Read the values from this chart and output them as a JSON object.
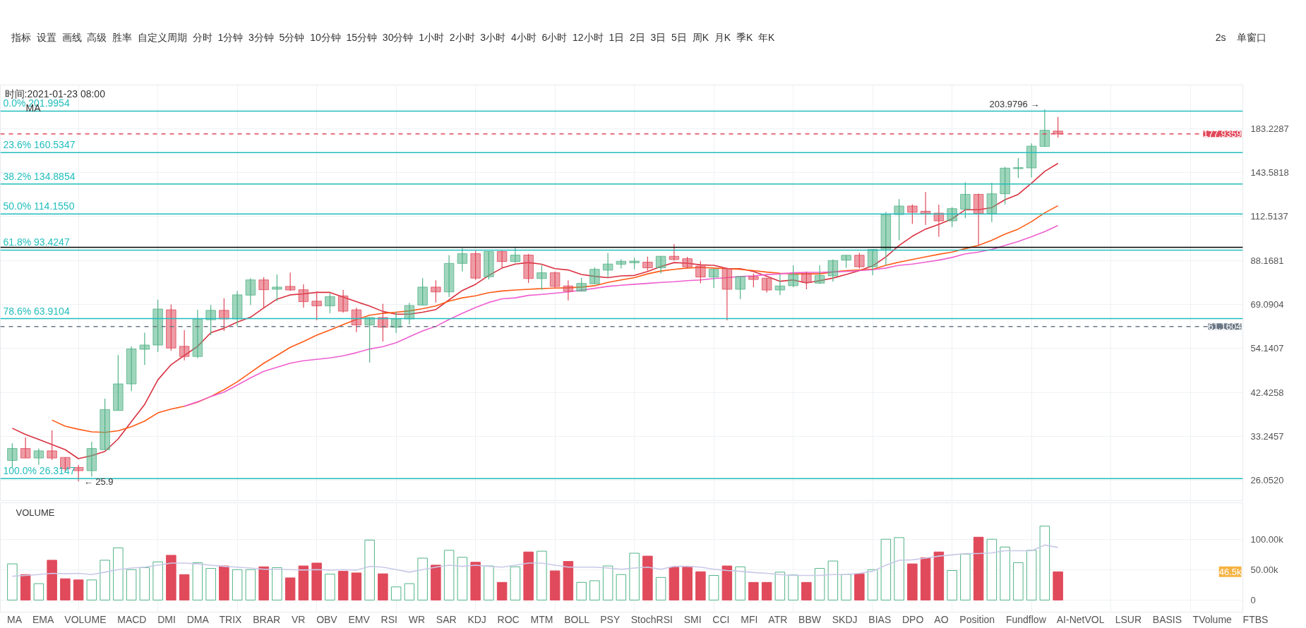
{
  "chart_data": [
    {
      "type": "candlestick",
      "categories": [
        null,
        null,
        null,
        null,
        null,
        null,
        null,
        null,
        null,
        null,
        null,
        null,
        null,
        null,
        null,
        null,
        null,
        null,
        null,
        null,
        null,
        null,
        null,
        null,
        null,
        null,
        null,
        null,
        null,
        null,
        null,
        null,
        null,
        null,
        null,
        null,
        null,
        null,
        null,
        null,
        null,
        null,
        null,
        null,
        null,
        null,
        null,
        null,
        null,
        null,
        null,
        null,
        null,
        null,
        null,
        null,
        null,
        null,
        null,
        null,
        null,
        null,
        null,
        null,
        null,
        null,
        null,
        null,
        null,
        null,
        null,
        null,
        null,
        null,
        null,
        null,
        null,
        null,
        null,
        null
      ],
      "ohlc": [
        [
          29.1,
          32.0,
          28.0,
          31.1
        ],
        [
          31.1,
          33.1,
          29.5,
          29.5
        ],
        [
          29.5,
          31.1,
          28.4,
          30.7
        ],
        [
          30.7,
          34.4,
          29.2,
          29.5
        ],
        [
          29.6,
          29.6,
          27.2,
          27.8
        ],
        [
          28.0,
          28.4,
          25.9,
          27.5
        ],
        [
          27.5,
          32.3,
          26.6,
          31.1
        ],
        [
          30.9,
          41.0,
          30.9,
          38.6
        ],
        [
          38.4,
          52.2,
          38.4,
          44.5
        ],
        [
          44.5,
          54.8,
          42.7,
          54.0
        ],
        [
          53.9,
          59.1,
          49.4,
          55.2
        ],
        [
          55.2,
          71.0,
          53.1,
          67.4
        ],
        [
          67.1,
          69.1,
          53.5,
          54.3
        ],
        [
          54.8,
          60.0,
          50.7,
          51.8
        ],
        [
          51.8,
          67.1,
          51.3,
          63.8
        ],
        [
          63.5,
          68.9,
          58.3,
          66.9
        ],
        [
          66.9,
          71.5,
          59.7,
          63.8
        ],
        [
          63.8,
          74.5,
          61.3,
          72.9
        ],
        [
          72.8,
          80.0,
          68.9,
          79.2
        ],
        [
          79.2,
          80.4,
          67.9,
          75.0
        ],
        [
          75.2,
          81.6,
          70.4,
          76.1
        ],
        [
          76.4,
          82.5,
          74.5,
          74.9
        ],
        [
          75.0,
          77.3,
          67.9,
          70.2
        ],
        [
          70.4,
          74.4,
          63.3,
          68.6
        ],
        [
          68.6,
          73.6,
          65.9,
          72.2
        ],
        [
          72.5,
          75.0,
          66.1,
          66.6
        ],
        [
          67.1,
          67.9,
          59.3,
          61.7
        ],
        [
          61.7,
          64.3,
          50.1,
          64.3
        ],
        [
          64.3,
          69.4,
          56.3,
          60.9
        ],
        [
          60.9,
          66.4,
          59.0,
          63.8
        ],
        [
          63.8,
          69.7,
          61.9,
          68.7
        ],
        [
          68.9,
          80.0,
          68.9,
          76.1
        ],
        [
          76.1,
          79.0,
          69.9,
          74.1
        ],
        [
          74.1,
          90.9,
          72.0,
          86.8
        ],
        [
          86.8,
          94.5,
          83.0,
          91.6
        ],
        [
          91.6,
          93.1,
          79.2,
          80.0
        ],
        [
          80.6,
          92.7,
          79.4,
          92.7
        ],
        [
          92.7,
          93.1,
          84.7,
          87.7
        ],
        [
          87.7,
          94.9,
          87.1,
          90.9
        ],
        [
          90.9,
          91.5,
          77.9,
          79.8
        ],
        [
          79.8,
          85.9,
          75.0,
          82.4
        ],
        [
          82.4,
          83.0,
          75.8,
          76.4
        ],
        [
          76.6,
          79.0,
          70.7,
          74.4
        ],
        [
          74.4,
          80.1,
          74.4,
          77.7
        ],
        [
          77.5,
          84.9,
          77.5,
          84.0
        ],
        [
          83.6,
          92.0,
          80.4,
          86.5
        ],
        [
          86.4,
          88.8,
          84.4,
          87.8
        ],
        [
          87.1,
          89.7,
          84.0,
          87.9
        ],
        [
          87.4,
          90.1,
          83.4,
          84.7
        ],
        [
          84.7,
          90.3,
          82.0,
          90.3
        ],
        [
          90.3,
          96.6,
          88.2,
          88.7
        ],
        [
          89.1,
          90.0,
          84.7,
          85.2
        ],
        [
          85.5,
          87.8,
          77.8,
          80.5
        ],
        [
          80.5,
          84.0,
          75.8,
          84.0
        ],
        [
          84.4,
          84.7,
          63.3,
          75.2
        ],
        [
          75.2,
          80.7,
          71.2,
          80.7
        ],
        [
          80.7,
          82.0,
          76.1,
          79.4
        ],
        [
          80.0,
          80.0,
          73.9,
          74.9
        ],
        [
          74.9,
          81.6,
          72.8,
          76.6
        ],
        [
          76.7,
          85.9,
          76.1,
          81.6
        ],
        [
          82.0,
          83.0,
          75.2,
          78.1
        ],
        [
          77.8,
          85.9,
          77.5,
          81.2
        ],
        [
          81.0,
          88.7,
          78.4,
          88.2
        ],
        [
          88.4,
          90.8,
          84.7,
          90.8
        ],
        [
          90.8,
          92.0,
          84.4,
          85.2
        ],
        [
          85.2,
          93.8,
          81.3,
          93.8
        ],
        [
          93.4,
          115.5,
          85.9,
          113.8
        ],
        [
          113.8,
          124.0,
          98.7,
          119.3
        ],
        [
          119.3,
          120.4,
          108.1,
          115.2
        ],
        [
          115.9,
          129.0,
          107.5,
          114.2
        ],
        [
          114.7,
          120.2,
          100.6,
          109.9
        ],
        [
          109.9,
          118.6,
          106.2,
          117.6
        ],
        [
          117.3,
          136.2,
          111.5,
          127.3
        ],
        [
          127.3,
          127.7,
          95.9,
          114.4
        ],
        [
          114.4,
          135.8,
          109.1,
          127.7
        ],
        [
          127.7,
          148.3,
          120.4,
          147.2
        ],
        [
          146.8,
          155.7,
          139.4,
          147.6
        ],
        [
          147.4,
          168.8,
          139.8,
          166.3
        ],
        [
          166.0,
          203.9796,
          166.0,
          181.6
        ],
        [
          180.8,
          195.5,
          174.3,
          177.9359
        ]
      ],
      "colors": [
        "#52b387",
        "#e04a5b",
        "#52b387",
        "#e04a5b",
        "#e04a5b",
        "#e04a5b",
        "#52b387",
        "#52b387",
        "#52b387",
        "#52b387",
        "#52b387",
        "#52b387",
        "#e04a5b",
        "#e04a5b",
        "#52b387",
        "#52b387",
        "#e04a5b",
        "#52b387",
        "#52b387",
        "#e04a5b",
        "#52b387",
        "#e04a5b",
        "#e04a5b",
        "#e04a5b",
        "#52b387",
        "#e04a5b",
        "#e04a5b",
        "#52b387",
        "#e04a5b",
        "#52b387",
        "#52b387",
        "#52b387",
        "#e04a5b",
        "#52b387",
        "#52b387",
        "#e04a5b",
        "#52b387",
        "#e04a5b",
        "#52b387",
        "#e04a5b",
        "#52b387",
        "#e04a5b",
        "#e04a5b",
        "#52b387",
        "#52b387",
        "#52b387",
        "#52b387",
        "#52b387",
        "#e04a5b",
        "#52b387",
        "#e04a5b",
        "#e04a5b",
        "#e04a5b",
        "#52b387",
        "#e04a5b",
        "#52b387",
        "#e04a5b",
        "#e04a5b",
        "#52b387",
        "#52b387",
        "#e04a5b",
        "#52b387",
        "#52b387",
        "#52b387",
        "#e04a5b",
        "#52b387",
        "#52b387",
        "#52b387",
        "#e04a5b",
        "#e04a5b",
        "#e04a5b",
        "#52b387",
        "#52b387",
        "#e04a5b",
        "#52b387",
        "#52b387",
        "#52b387",
        "#52b387",
        "#52b387",
        "#e04a5b"
      ],
      "series": [
        {
          "type": "line",
          "color": "#d9303f",
          "values": [
            34.8,
            33.6,
            32.7,
            31.8,
            30.9,
            29.4,
            29.9,
            30.6,
            32.8,
            36.1,
            39.7,
            45.5,
            49.5,
            52.1,
            54.8,
            59.1,
            60.6,
            62.7,
            64.4,
            67.8,
            71.2,
            72.9,
            73.3,
            73.9,
            73.9,
            72.0,
            70.2,
            68.5,
            66.5,
            65.5,
            65.5,
            66.2,
            67.2,
            70.9,
            74.7,
            77.3,
            81.2,
            84.6,
            86.5,
            87.2,
            86.4,
            84.3,
            83.7,
            81.6,
            80.8,
            80.2,
            81.0,
            81.2,
            83.0,
            85.3,
            87.2,
            86.9,
            86.1,
            85.9,
            84.4,
            84.3,
            83.0,
            80.8,
            78.6,
            79.2,
            77.9,
            78.9,
            80.0,
            81.6,
            83.4,
            85.6,
            90.0,
            95.9,
            100.9,
            105.0,
            107.8,
            111.1,
            116.9,
            116.9,
            118.3,
            123.6,
            127.3,
            135.4,
            144.6,
            151.2
          ]
        },
        {
          "type": "line",
          "color": "#ff5a14",
          "values": [
            null,
            null,
            null,
            36.4,
            35.2,
            34.6,
            34.1,
            34.0,
            34.3,
            35.1,
            36.2,
            37.9,
            38.7,
            39.3,
            40.2,
            41.5,
            43.1,
            45.0,
            47.4,
            49.9,
            52.1,
            54.5,
            56.3,
            58.3,
            60.0,
            61.8,
            63.6,
            65.1,
            65.8,
            66.2,
            66.7,
            67.5,
            68.6,
            70.4,
            71.7,
            72.5,
            73.8,
            74.5,
            74.9,
            75.2,
            75.5,
            75.7,
            75.8,
            76.1,
            76.7,
            78.1,
            79.2,
            80.2,
            81.9,
            83.2,
            84.0,
            84.6,
            84.9,
            84.6,
            84.3,
            84.0,
            83.4,
            82.7,
            82.2,
            81.9,
            81.9,
            81.9,
            82.8,
            83.4,
            83.7,
            84.0,
            85.9,
            87.4,
            88.7,
            90.0,
            91.3,
            92.4,
            94.2,
            95.9,
            98.7,
            102.1,
            105.0,
            109.4,
            114.9,
            119.5
          ]
        },
        {
          "type": "line",
          "color": "#ee5fd0",
          "values": [
            null,
            null,
            null,
            null,
            null,
            null,
            null,
            null,
            null,
            null,
            null,
            null,
            null,
            39.3,
            40.3,
            41.5,
            42.5,
            44.2,
            46.0,
            47.7,
            48.8,
            49.9,
            50.6,
            51.0,
            51.4,
            52.0,
            52.9,
            54.0,
            54.7,
            55.9,
            57.8,
            59.7,
            61.2,
            63.6,
            65.8,
            68.0,
            69.9,
            71.3,
            71.7,
            72.7,
            73.1,
            73.6,
            74.1,
            74.8,
            75.6,
            76.4,
            76.9,
            77.3,
            77.7,
            78.1,
            78.4,
            78.9,
            79.2,
            79.8,
            80.2,
            80.7,
            81.0,
            81.6,
            81.9,
            82.4,
            82.6,
            82.6,
            82.8,
            83.0,
            83.4,
            83.8,
            84.6,
            85.9,
            86.5,
            87.4,
            88.4,
            89.7,
            91.5,
            92.4,
            93.8,
            95.9,
            98.0,
            100.6,
            103.5,
            107.1
          ]
        }
      ],
      "log": true,
      "ylim": [
        23.2,
        233.4
      ],
      "yticks": [
        {
          "value": 26.052,
          "label": "26.0520"
        },
        33.2457,
        42.4258,
        54.1407,
        69.0904,
        88.1681,
        112.5137,
        143.5818,
        183.2287
      ],
      "grid": true,
      "ref_lines": [
        {
          "axis": "y",
          "value": 201.9954,
          "label": "0.0% 201.9954",
          "color": "#22bdbd"
        },
        {
          "axis": "y",
          "value": 160.5347,
          "label": "23.6% 160.5347",
          "color": "#22bdbd"
        },
        {
          "axis": "y",
          "value": 134.8854,
          "label": "38.2% 134.8854",
          "color": "#22bdbd"
        },
        {
          "axis": "y",
          "value": 114.155,
          "label": "50.0% 114.1550",
          "color": "#22bdbd"
        },
        {
          "axis": "y",
          "value": 93.4247,
          "label": "61.8% 93.4247",
          "color": "#22bdbd"
        },
        {
          "axis": "y",
          "value": 63.9104,
          "label": "78.6% 63.9104",
          "color": "#22bdbd"
        },
        {
          "axis": "y",
          "value": 26.3147,
          "label": "100.0% 26.3147",
          "color": "#22bdbd"
        },
        {
          "axis": "y",
          "value": 94.9,
          "color": "#000000"
        },
        {
          "axis": "y",
          "value": 177.9359,
          "label": "177.9359",
          "color": "#e2485a",
          "line_style": "dashed"
        },
        {
          "axis": "y",
          "value": 61.1604,
          "label": "61.1604",
          "color": "#6b7785",
          "line_style": "dashed"
        }
      ],
      "annotations": [
        "时间:2021-01-23 08:00",
        "MA",
        "指标  设置  画线  高级  胜率  自定义周期  分时  1分钟  3分钟  5分钟  10分钟  15分钟  30分钟  1小时  2小时  3小时  4小时  6小时  12小时  1日  2日  3日  5日  周K  月K  季K  年K",
        "2s",
        "单窗口",
        {
          "text": "203.9796 →",
          "y": 203.9796
        },
        {
          "text": "← 25.9",
          "y": 25.9
        }
      ]
    },
    {
      "type": "bar",
      "title": "VOLUME",
      "categories": [
        null,
        null,
        null,
        null,
        null,
        null,
        null,
        null,
        null,
        null,
        null,
        null,
        null,
        null,
        null,
        null,
        null,
        null,
        null,
        null,
        null,
        null,
        null,
        null,
        null,
        null,
        null,
        null,
        null,
        null,
        null,
        null,
        null,
        null,
        null,
        null,
        null,
        null,
        null,
        null,
        null,
        null,
        null,
        null,
        null,
        null,
        null,
        null,
        null,
        null,
        null,
        null,
        null,
        null,
        null,
        null,
        null,
        null,
        null,
        null,
        null,
        null,
        null,
        null,
        null,
        null,
        null,
        null,
        null,
        null,
        null,
        null,
        null,
        null,
        null,
        null,
        null,
        null,
        null,
        null
      ],
      "series": [
        {
          "type": "bar",
          "colors": [
            "#52b387",
            "#e04a5b",
            "#52b387",
            "#e04a5b",
            "#e04a5b",
            "#e04a5b",
            "#52b387",
            "#52b387",
            "#52b387",
            "#52b387",
            "#52b387",
            "#52b387",
            "#e04a5b",
            "#e04a5b",
            "#52b387",
            "#52b387",
            "#e04a5b",
            "#52b387",
            "#52b387",
            "#e04a5b",
            "#52b387",
            "#e04a5b",
            "#e04a5b",
            "#e04a5b",
            "#52b387",
            "#e04a5b",
            "#e04a5b",
            "#52b387",
            "#e04a5b",
            "#52b387",
            "#52b387",
            "#52b387",
            "#e04a5b",
            "#52b387",
            "#52b387",
            "#e04a5b",
            "#52b387",
            "#e04a5b",
            "#52b387",
            "#e04a5b",
            "#52b387",
            "#e04a5b",
            "#e04a5b",
            "#52b387",
            "#52b387",
            "#52b387",
            "#52b387",
            "#52b387",
            "#e04a5b",
            "#52b387",
            "#e04a5b",
            "#e04a5b",
            "#e04a5b",
            "#52b387",
            "#e04a5b",
            "#52b387",
            "#e04a5b",
            "#e04a5b",
            "#52b387",
            "#52b387",
            "#e04a5b",
            "#52b387",
            "#52b387",
            "#52b387",
            "#e04a5b",
            "#52b387",
            "#52b387",
            "#52b387",
            "#e04a5b",
            "#e04a5b",
            "#e04a5b",
            "#52b387",
            "#52b387",
            "#e04a5b",
            "#52b387",
            "#52b387",
            "#52b387",
            "#52b387",
            "#52b387",
            "#e04a5b"
          ],
          "values": [
            59500,
            41900,
            27000,
            65500,
            35100,
            33100,
            33100,
            65500,
            85800,
            50000,
            53400,
            62800,
            73600,
            41900,
            61500,
            52000,
            56100,
            50000,
            50000,
            54700,
            53400,
            36500,
            56100,
            60800,
            42600,
            47300,
            44600,
            98600,
            43200,
            21600,
            27000,
            68900,
            57400,
            81800,
            70300,
            62200,
            56100,
            29100,
            54700,
            79100,
            80400,
            48000,
            63500,
            29100,
            31800,
            56100,
            41900,
            77000,
            72300,
            37200,
            54100,
            55400,
            46600,
            40500,
            56100,
            54700,
            29100,
            29100,
            45900,
            41200,
            29100,
            52000,
            64200,
            41900,
            43200,
            50000,
            100000,
            102700,
            59500,
            69600,
            79100,
            48600,
            75700,
            103400,
            100000,
            87200,
            61500,
            81800,
            121600,
            46500
          ]
        },
        {
          "type": "line",
          "color": "#c9c9e8",
          "values": [
            39200,
            40500,
            41900,
            43900,
            43200,
            43900,
            41900,
            45900,
            50000,
            52700,
            54100,
            57400,
            60800,
            60800,
            59500,
            57400,
            55400,
            54100,
            52700,
            50700,
            50700,
            50000,
            49300,
            50000,
            49300,
            50000,
            49300,
            55400,
            54100,
            50000,
            45900,
            50000,
            54100,
            57400,
            55400,
            57400,
            55400,
            54100,
            57400,
            60800,
            60800,
            57400,
            54100,
            54100,
            54100,
            52700,
            50700,
            52700,
            54100,
            50700,
            55400,
            55400,
            54100,
            50700,
            48600,
            47300,
            45300,
            43900,
            41900,
            40500,
            40500,
            40500,
            41900,
            41900,
            43900,
            47300,
            57400,
            65500,
            66200,
            68900,
            72300,
            74300,
            76400,
            76400,
            77700,
            81100,
            81100,
            81100,
            90500,
            86500
          ]
        }
      ],
      "ylim": [
        -21000,
        160000
      ],
      "yticks": [
        {
          "value": 0,
          "label": "0"
        },
        {
          "value": 50000,
          "label": "50.00k"
        },
        {
          "value": 100000,
          "label": "100.00k"
        }
      ],
      "grid": true,
      "annotations": [
        "MA  EMA  VOLUME  MACD  DMI  DMA  TRIX  BRAR  VR  OBV  EMV  RSI  WR  SAR  KDJ  ROC  MTM  BOLL  PSY  StochRSI  SMI  CCI  MFI  ATR  BBW  SKDJ  BIAS  DPO  AO  Position  Fundflow  AI-NetVOL  LSUR  BASIS  TVolume  FTBS",
        "46.5k"
      ]
    }
  ]
}
